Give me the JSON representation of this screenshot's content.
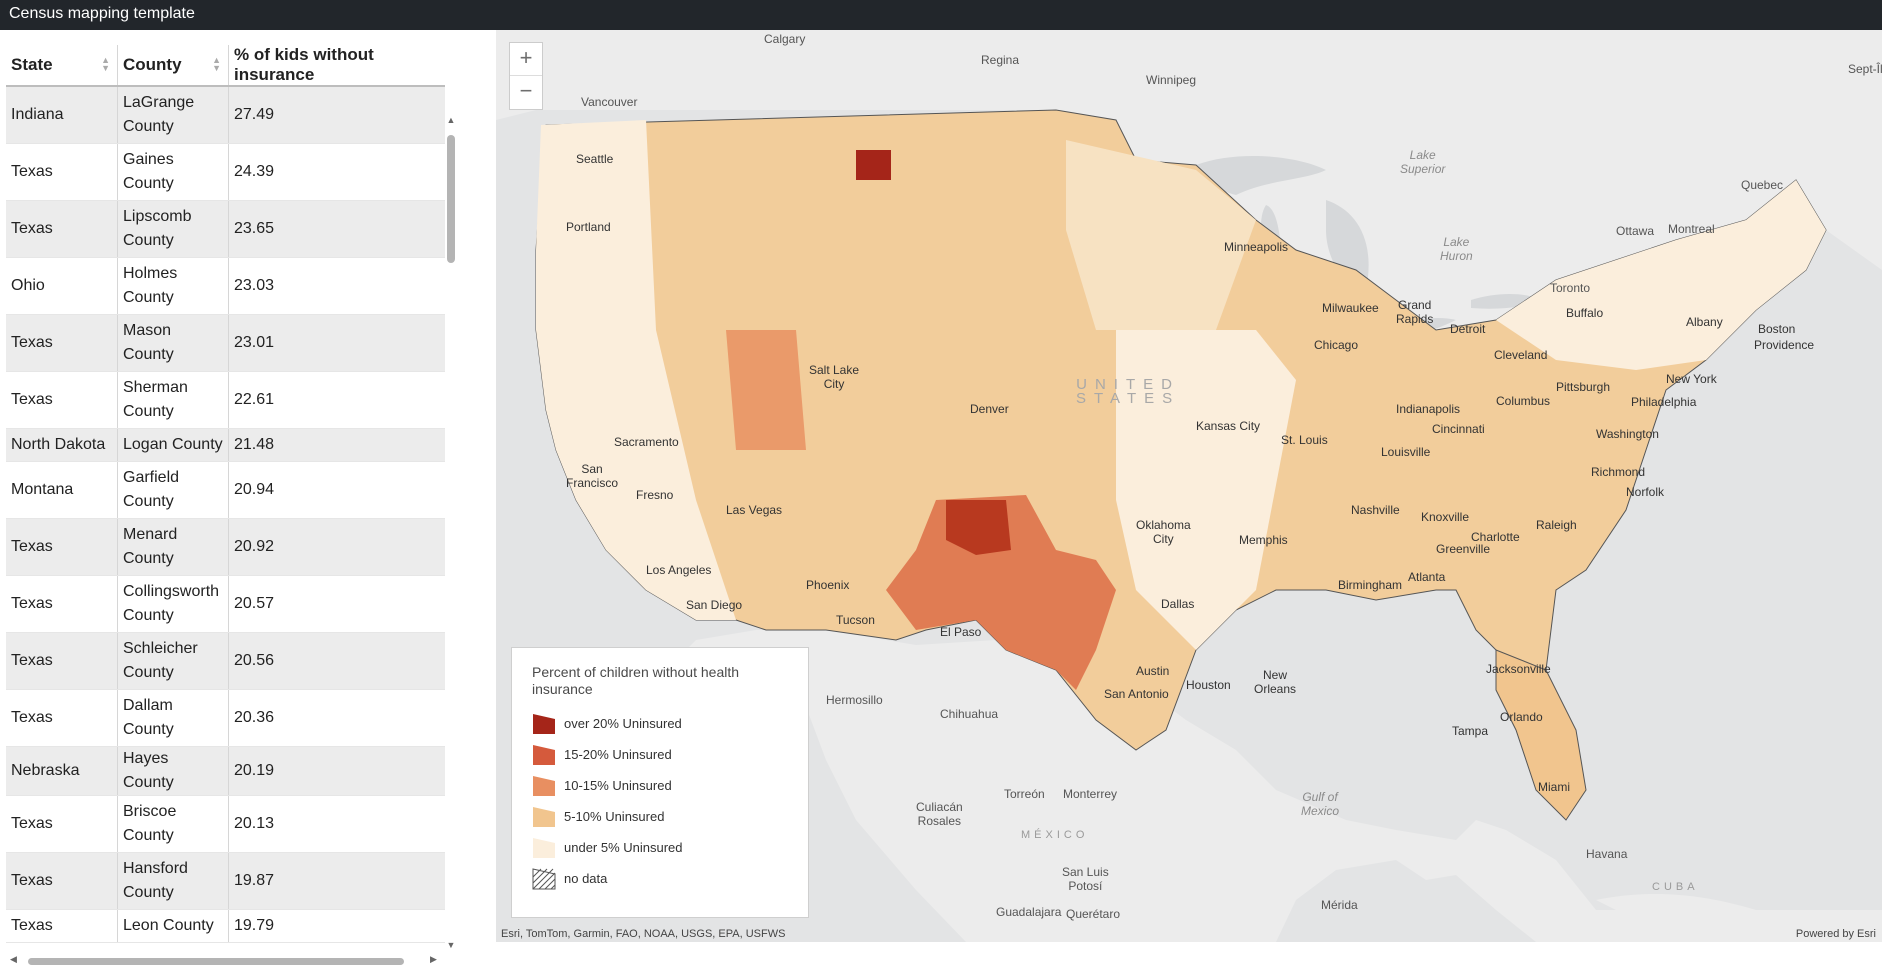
{
  "app": {
    "title": "Census mapping template"
  },
  "table": {
    "columns": [
      "State",
      "County",
      "% of kids without insurance"
    ],
    "rows": [
      [
        "Indiana",
        "LaGrange County",
        "27.49"
      ],
      [
        "Texas",
        "Gaines County",
        "24.39"
      ],
      [
        "Texas",
        "Lipscomb County",
        "23.65"
      ],
      [
        "Ohio",
        "Holmes County",
        "23.03"
      ],
      [
        "Texas",
        "Mason County",
        "23.01"
      ],
      [
        "Texas",
        "Sherman County",
        "22.61"
      ],
      [
        "North Dakota",
        "Logan County",
        "21.48"
      ],
      [
        "Montana",
        "Garfield County",
        "20.94"
      ],
      [
        "Texas",
        "Menard County",
        "20.92"
      ],
      [
        "Texas",
        "Collingsworth County",
        "20.57"
      ],
      [
        "Texas",
        "Schleicher County",
        "20.56"
      ],
      [
        "Texas",
        "Dallam County",
        "20.36"
      ],
      [
        "Nebraska",
        "Hayes County",
        "20.19"
      ],
      [
        "Texas",
        "Briscoe County",
        "20.13"
      ],
      [
        "Texas",
        "Hansford County",
        "19.87"
      ],
      [
        "Texas",
        "Leon County",
        "19.79"
      ]
    ]
  },
  "map": {
    "zoom_in": "+",
    "zoom_out": "−",
    "attribution": "Esri, TomTom, Garmin, FAO, NOAA, USGS, EPA, USFWS",
    "powered_by": "Powered by Esri",
    "labels": {
      "calgary": "Calgary",
      "regina": "Regina",
      "winnipeg": "Winnipeg",
      "vancouver": "Vancouver",
      "seattle": "Seattle",
      "portland": "Portland",
      "sacramento": "Sacramento",
      "san_francisco": "San\nFrancisco",
      "fresno": "Fresno",
      "los_angeles": "Los Angeles",
      "san_diego": "San Diego",
      "las_vegas": "Las Vegas",
      "salt_lake": "Salt Lake\nCity",
      "phoenix": "Phoenix",
      "tucson": "Tucson",
      "denver": "Denver",
      "el_paso": "El Paso",
      "minneapolis": "Minneapolis",
      "milwaukee": "Milwaukee",
      "chicago": "Chicago",
      "kansas_city": "Kansas City",
      "st_louis": "St. Louis",
      "oklahoma_city": "Oklahoma\nCity",
      "dallas": "Dallas",
      "austin": "Austin",
      "san_antonio": "San Antonio",
      "houston": "Houston",
      "memphis": "Memphis",
      "nashville": "Nashville",
      "birmingham": "Birmingham",
      "atlanta": "Atlanta",
      "new_orleans": "New\nOrleans",
      "jacksonville": "Jacksonville",
      "tampa": "Tampa",
      "orlando": "Orlando",
      "miami": "Miami",
      "indianapolis": "Indianapolis",
      "cincinnati": "Cincinnati",
      "louisville": "Louisville",
      "columbus": "Columbus",
      "cleveland": "Cleveland",
      "detroit": "Detroit",
      "grand_rapids": "Grand\nRapids",
      "toronto": "Toronto",
      "ottawa": "Ottawa",
      "montreal": "Montreal",
      "quebec": "Quebec",
      "buffalo": "Buffalo",
      "albany": "Albany",
      "boston": "Boston",
      "providence": "Providence",
      "new_york": "New York",
      "philadelphia": "Philadelphia",
      "pittsburgh": "Pittsburgh",
      "washington": "Washington",
      "richmond": "Richmond",
      "norfolk": "Norfolk",
      "raleigh": "Raleigh",
      "charlotte": "Charlotte",
      "knoxville": "Knoxville",
      "greenville": "Greenville",
      "hermosillo": "Hermosillo",
      "chihuahua": "Chihuahua",
      "monterrey": "Monterrey",
      "torreon": "Torreón",
      "culiacan": "Culiacán\nRosales",
      "san_luis": "San Luis\nPotosí",
      "guadalajara": "Guadalajara",
      "queretaro": "Querétaro",
      "merida": "Mérida",
      "havana": "Havana",
      "united_states": "UNITED\nSTATES",
      "mexico": "MÉXICO",
      "cuba": "CUBA",
      "gulf": "Gulf of\nMexico",
      "lake_superior": "Lake\nSuperior",
      "lake_huron": "Lake\nHuron",
      "sept_iles": "Sept-Îl"
    }
  },
  "legend": {
    "title": "Percent of children without health insurance",
    "items": [
      {
        "label": "over 20% Uninsured",
        "color": "#a52519"
      },
      {
        "label": "15-20% Uninsured",
        "color": "#d55a3c"
      },
      {
        "label": "10-15% Uninsured",
        "color": "#e88f61"
      },
      {
        "label": "5-10% Uninsured",
        "color": "#f1c58e"
      },
      {
        "label": "under 5% Uninsured",
        "color": "#fbeedc"
      },
      {
        "label": "no data",
        "color": "hatch"
      }
    ]
  }
}
